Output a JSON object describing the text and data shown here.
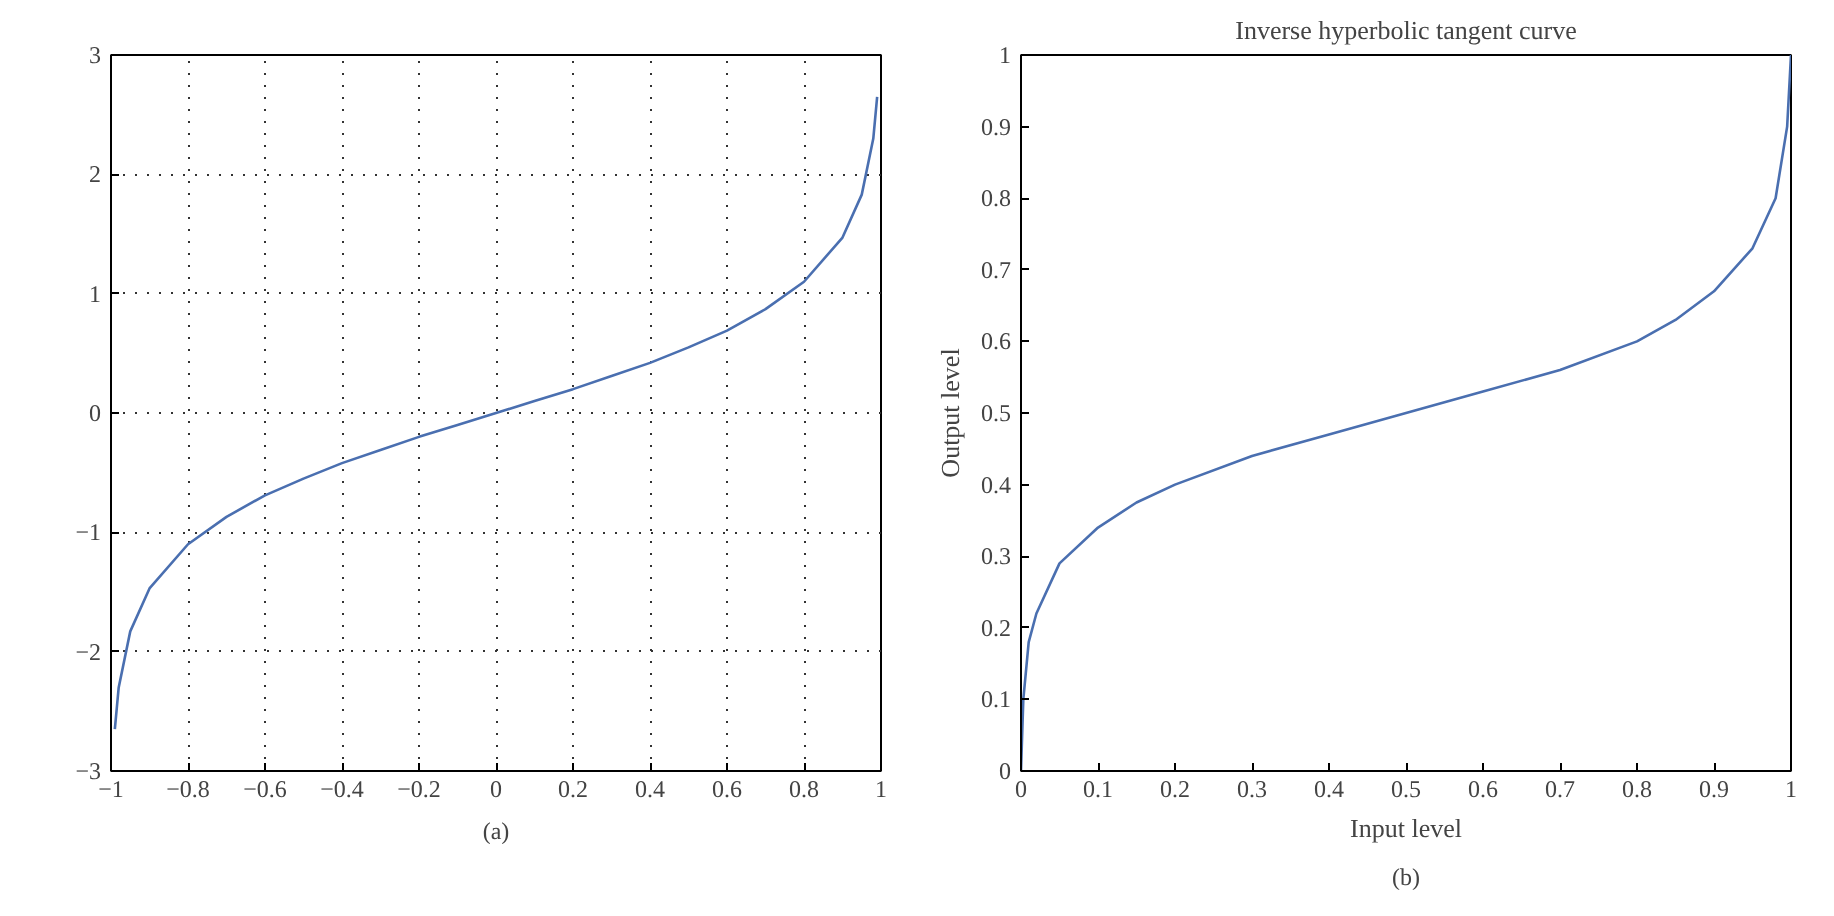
{
  "chart_data": [
    {
      "type": "line",
      "x": [
        -0.99,
        -0.98,
        -0.95,
        -0.9,
        -0.8,
        -0.7,
        -0.6,
        -0.5,
        -0.4,
        -0.3,
        -0.2,
        -0.1,
        0,
        0.1,
        0.2,
        0.3,
        0.4,
        0.5,
        0.6,
        0.7,
        0.8,
        0.9,
        0.95,
        0.98,
        0.99
      ],
      "series": [
        {
          "color": "#4a6fb0",
          "values": [
            -2.65,
            -2.3,
            -1.83,
            -1.47,
            -1.1,
            -0.87,
            -0.69,
            -0.55,
            -0.42,
            -0.31,
            -0.2,
            -0.1,
            0,
            0.1,
            0.2,
            0.31,
            0.42,
            0.55,
            0.69,
            0.87,
            1.1,
            1.47,
            1.83,
            2.3,
            2.65
          ]
        }
      ],
      "xlim": [
        -1,
        1
      ],
      "ylim": [
        -3,
        3
      ],
      "xticks": [
        {
          "value": -1,
          "label": "−1"
        },
        {
          "value": -0.8,
          "label": "−0.8"
        },
        {
          "value": -0.6,
          "label": "−0.6"
        },
        {
          "value": -0.4,
          "label": "−0.4"
        },
        {
          "value": -0.2,
          "label": "−0.2"
        },
        0,
        0.2,
        0.4,
        0.6,
        0.8,
        1
      ],
      "yticks": [
        {
          "value": -3,
          "label": "−3"
        },
        {
          "value": -2,
          "label": "−2"
        },
        {
          "value": -1,
          "label": "−1"
        },
        0,
        1,
        2,
        3
      ],
      "grid": true,
      "line_style": "solid",
      "annotations": [
        "(a)"
      ]
    },
    {
      "type": "line",
      "title": "Inverse hyperbolic tangent curve",
      "xlabel": "Input level",
      "ylabel": "Output level",
      "x": [
        0,
        0.003,
        0.01,
        0.02,
        0.05,
        0.1,
        0.15,
        0.2,
        0.3,
        0.4,
        0.5,
        0.6,
        0.7,
        0.8,
        0.85,
        0.9,
        0.95,
        0.98,
        0.995,
        1
      ],
      "series": [
        {
          "color": "#4a6fb0",
          "values": [
            0,
            0.1,
            0.18,
            0.22,
            0.29,
            0.34,
            0.375,
            0.4,
            0.44,
            0.47,
            0.5,
            0.53,
            0.56,
            0.6,
            0.63,
            0.67,
            0.73,
            0.8,
            0.9,
            1
          ]
        }
      ],
      "xlim": [
        0,
        1
      ],
      "ylim": [
        0,
        1
      ],
      "xticks": [
        0,
        0.1,
        0.2,
        0.3,
        0.4,
        0.5,
        0.6,
        0.7,
        0.8,
        0.9,
        1
      ],
      "yticks": [
        0,
        0.1,
        0.2,
        0.3,
        0.4,
        0.5,
        0.6,
        0.7,
        0.8,
        0.9,
        1
      ],
      "grid": false,
      "line_style": "solid",
      "annotations": [
        "(b)"
      ]
    }
  ]
}
